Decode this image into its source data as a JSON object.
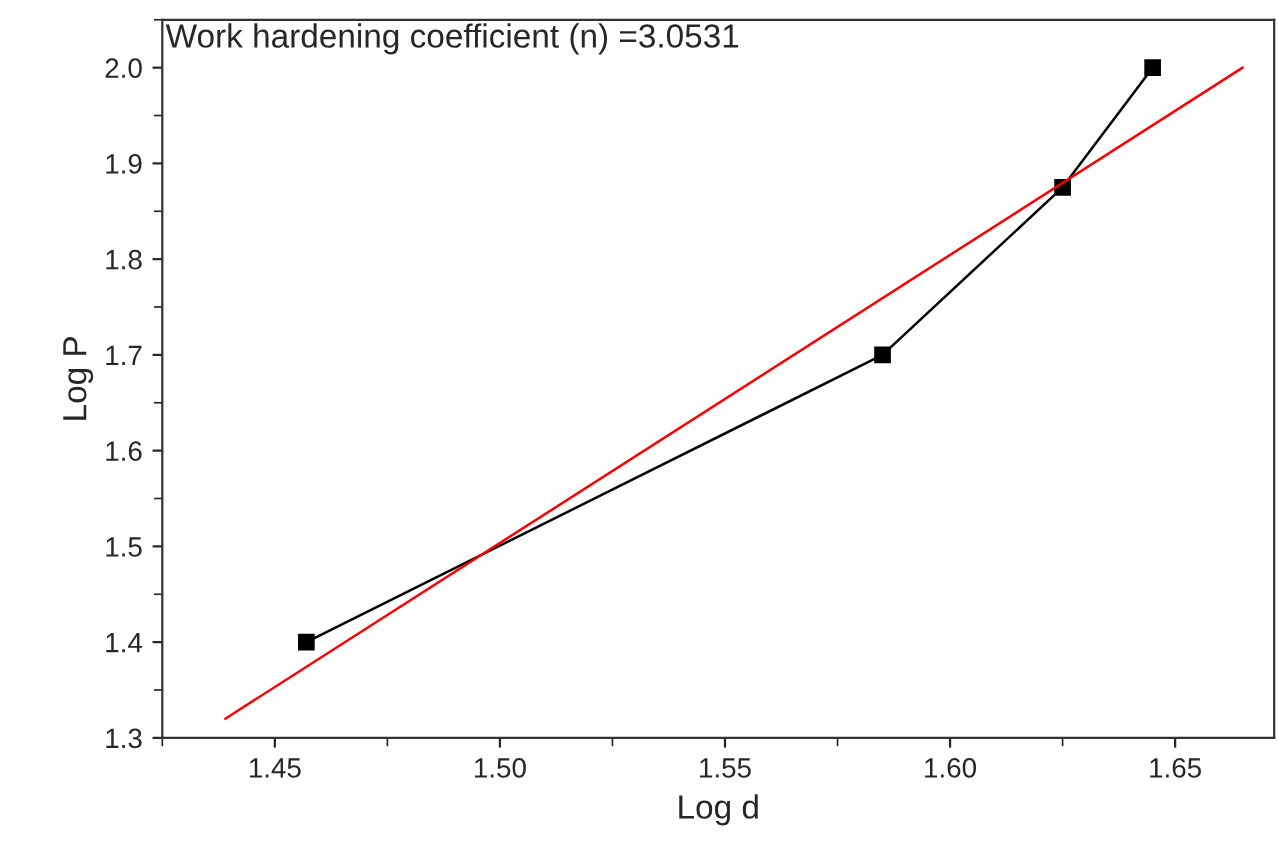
{
  "chart_data": {
    "type": "line",
    "xlabel": "Log d",
    "ylabel": "Log P",
    "annotations": [
      "Work hardening coefficient (n) =3.0531"
    ],
    "series": [
      {
        "color": "#000000",
        "marker": "square",
        "x": [
          1.457,
          1.585,
          1.625,
          1.645
        ],
        "values": [
          1.4,
          1.7,
          1.875,
          2.0
        ]
      },
      {
        "color": "#ff0000",
        "marker": "none",
        "x": [
          1.439,
          1.665
        ],
        "values": [
          1.32,
          2.0
        ]
      }
    ],
    "xlim": [
      1.425,
      1.672
    ],
    "xticks": [
      1.45,
      {
        "value": 1.5,
        "label": "1.50"
      },
      1.55,
      {
        "value": 1.6,
        "label": "1.60"
      },
      1.65
    ],
    "ylim": [
      1.3,
      2.05
    ],
    "yticks": [
      1.3,
      1.4,
      1.5,
      1.6,
      1.7,
      1.8,
      1.9,
      {
        "value": 2.0,
        "label": "2.0"
      }
    ],
    "grid": false,
    "legend": false
  }
}
